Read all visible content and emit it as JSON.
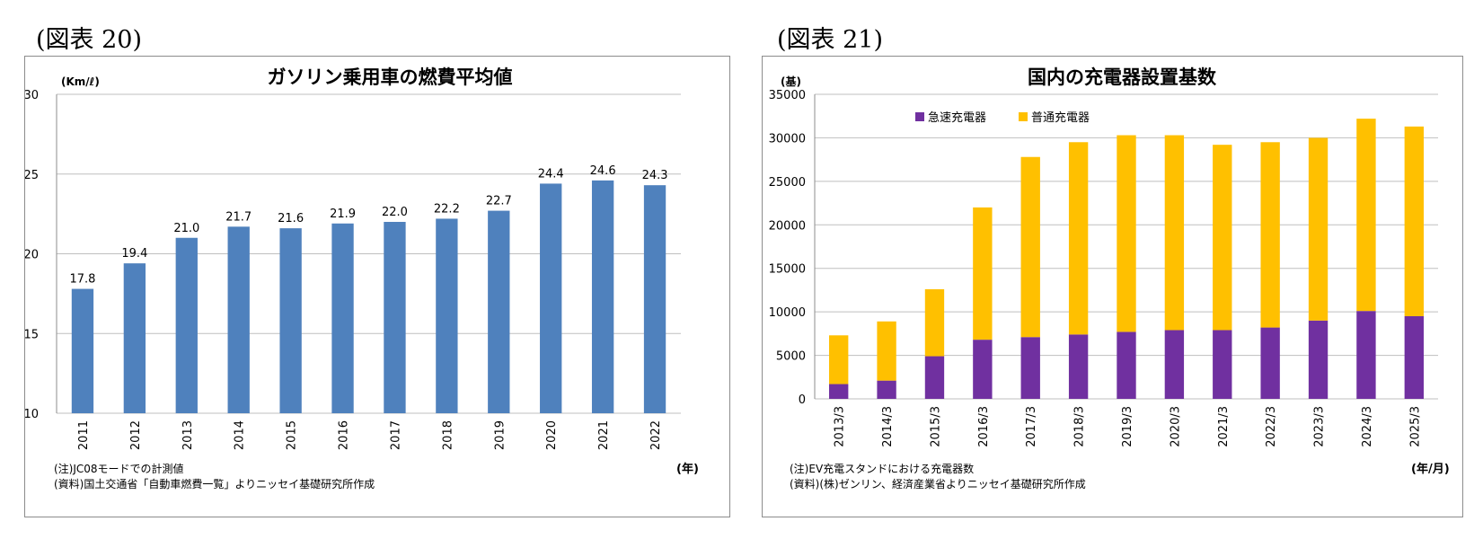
{
  "figures": [
    {
      "label": "(図表 20)"
    },
    {
      "label": "(図表 21)"
    }
  ],
  "chart_data": [
    {
      "type": "bar",
      "title": "ガソリン乗用車の燃費平均値",
      "ylabel": "(Km/ℓ)",
      "xlabel": "(年)",
      "ylim": [
        10,
        30
      ],
      "yticks": [
        10,
        15,
        20,
        25,
        30
      ],
      "grid": true,
      "color": "#4f81bd",
      "categories": [
        "2011",
        "2012",
        "2013",
        "2014",
        "2015",
        "2016",
        "2017",
        "2018",
        "2019",
        "2020",
        "2021",
        "2022"
      ],
      "values": [
        17.8,
        19.4,
        21.0,
        21.7,
        21.6,
        21.9,
        22.0,
        22.2,
        22.7,
        24.4,
        24.6,
        24.3
      ],
      "data_labels": [
        "17.8",
        "19.4",
        "21.0",
        "21.7",
        "21.6",
        "21.9",
        "22.0",
        "22.2",
        "22.7",
        "24.4",
        "24.6",
        "24.3"
      ],
      "notes": [
        "(注)JC08モードでの計測値",
        "(資料)国土交通省「自動車燃費一覧」よりニッセイ基礎研究所作成"
      ]
    },
    {
      "type": "bar",
      "stacked": true,
      "title": "国内の充電器設置基数",
      "ylabel": "(基)",
      "xlabel": "(年/月)",
      "ylim": [
        0,
        35000
      ],
      "yticks": [
        0,
        5000,
        10000,
        15000,
        20000,
        25000,
        30000,
        35000
      ],
      "grid": true,
      "legend_position": "top-left",
      "categories": [
        "2013/3",
        "2014/3",
        "2015/3",
        "2016/3",
        "2017/3",
        "2018/3",
        "2019/3",
        "2020/3",
        "2021/3",
        "2022/3",
        "2023/3",
        "2024/3",
        "2025/3"
      ],
      "series": [
        {
          "name": "急速充電器",
          "color": "#7030a0",
          "values": [
            1700,
            2100,
            4900,
            6800,
            7100,
            7400,
            7700,
            7900,
            7900,
            8200,
            9000,
            10100,
            9500
          ]
        },
        {
          "name": "普通充電器",
          "color": "#ffc000",
          "values": [
            5600,
            6800,
            7700,
            15200,
            20700,
            22100,
            22600,
            22400,
            21300,
            21300,
            21000,
            22100,
            21800
          ]
        }
      ],
      "notes": [
        "(注)EV充電スタンドにおける充電器数",
        "(資料)(株)ゼンリン、経済産業省よりニッセイ基礎研究所作成"
      ]
    }
  ]
}
